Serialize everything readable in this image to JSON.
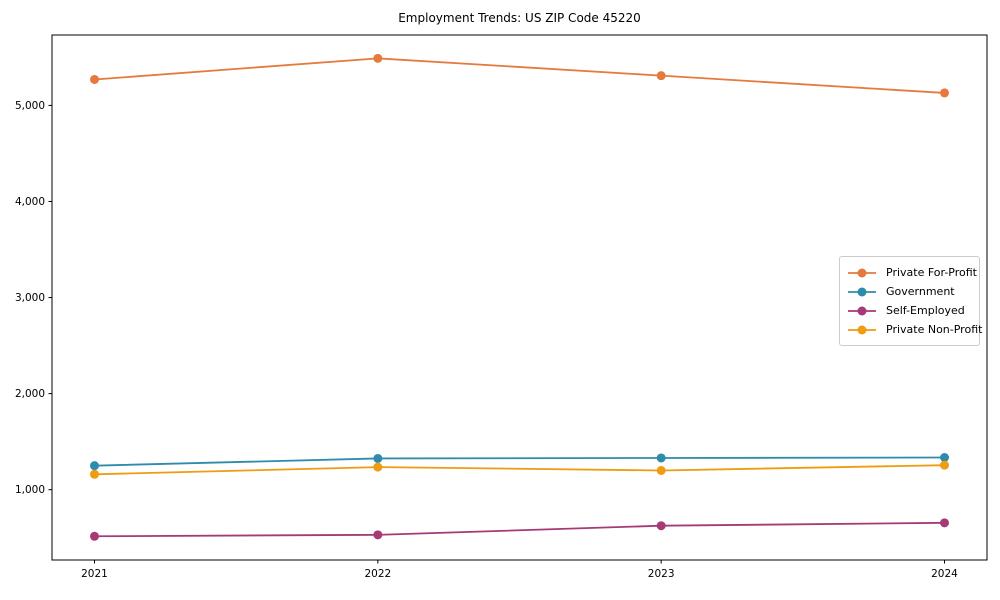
{
  "chart_data": {
    "type": "line",
    "title": "Employment Trends: US ZIP Code 45220",
    "x": [
      2021,
      2022,
      2023,
      2024
    ],
    "xtick_labels": [
      "2021",
      "2022",
      "2023",
      "2024"
    ],
    "series": [
      {
        "name": "Private For-Profit",
        "color": "#e6793d",
        "values": [
          5270,
          5490,
          5310,
          5130
        ]
      },
      {
        "name": "Government",
        "color": "#2f8bab",
        "values": [
          1250,
          1325,
          1330,
          1335
        ]
      },
      {
        "name": "Self-Employed",
        "color": "#a63a76",
        "values": [
          515,
          530,
          625,
          655
        ]
      },
      {
        "name": "Private Non-Profit",
        "color": "#ef9c11",
        "values": [
          1160,
          1235,
          1200,
          1255
        ]
      }
    ],
    "yticks": [
      1000,
      2000,
      3000,
      4000,
      5000
    ],
    "ytick_labels": [
      "1,000",
      "2,000",
      "3,000",
      "4,000",
      "5,000"
    ],
    "xlim": [
      2020.85,
      2024.15
    ],
    "ylim": [
      268,
      5733
    ],
    "xlabel": "",
    "ylabel": "",
    "grid": false,
    "legend_position": "center right",
    "frame_color": "#000000",
    "background_color": "#ffffff",
    "marker": "circle",
    "marker_radius": 4.5,
    "line_width": 1.8
  }
}
